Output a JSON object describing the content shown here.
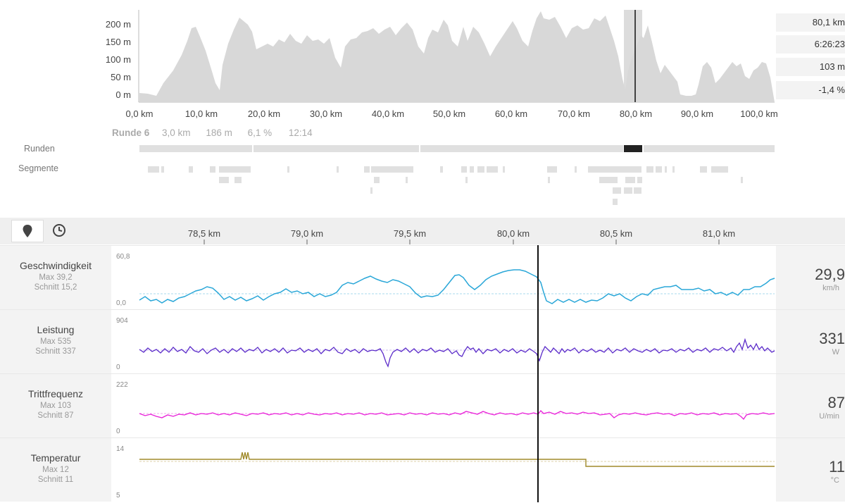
{
  "elevation": {
    "y_ticks": [
      "200 m",
      "150 m",
      "100 m",
      "50 m",
      "0 m"
    ],
    "x_ticks": [
      "0,0 km",
      "10,0 km",
      "20,0 km",
      "30,0 km",
      "40,0 km",
      "50,0 km",
      "60,0 km",
      "70,0 km",
      "80,0 km",
      "90,0 km",
      "100,0 km"
    ]
  },
  "stats": [
    "80,1 km",
    "6:26:23",
    "103 m",
    "-1,4 %"
  ],
  "lap_info": {
    "name": "Runde 6",
    "distance": "3,0 km",
    "elevation": "186 m",
    "grade": "6,1 %",
    "time": "12:14"
  },
  "rows": {
    "laps_label": "Runden",
    "segments_label": "Segmente"
  },
  "toolbar": {
    "location_icon": "location-pin-icon",
    "clock_icon": "clock-icon",
    "km_ticks": [
      "78,5 km",
      "79,0 km",
      "79,5 km",
      "80,0 km",
      "80,5 km",
      "81,0 km"
    ]
  },
  "metrics": [
    {
      "name": "Geschwindigkeit",
      "max": "Max 39,2",
      "avg": "Schnitt 15,2",
      "value": "29,9",
      "unit": "km/h",
      "axis_max": "60,8",
      "axis_min": "0,0",
      "color": "#2aa7d8"
    },
    {
      "name": "Leistung",
      "max": "Max 535",
      "avg": "Schnitt 337",
      "value": "331",
      "unit": "W",
      "axis_max": "904",
      "axis_min": "0",
      "color": "#5b2bc9"
    },
    {
      "name": "Trittfrequenz",
      "max": "Max 103",
      "avg": "Schnitt 87",
      "value": "87",
      "unit": "U/min",
      "axis_max": "222",
      "axis_min": "0",
      "color": "#e81fd8"
    },
    {
      "name": "Temperatur",
      "max": "Max 12",
      "avg": "Schnitt 11",
      "value": "11",
      "unit": "°C",
      "axis_max": "14",
      "axis_min": "5",
      "color": "#a08a2a"
    }
  ]
}
